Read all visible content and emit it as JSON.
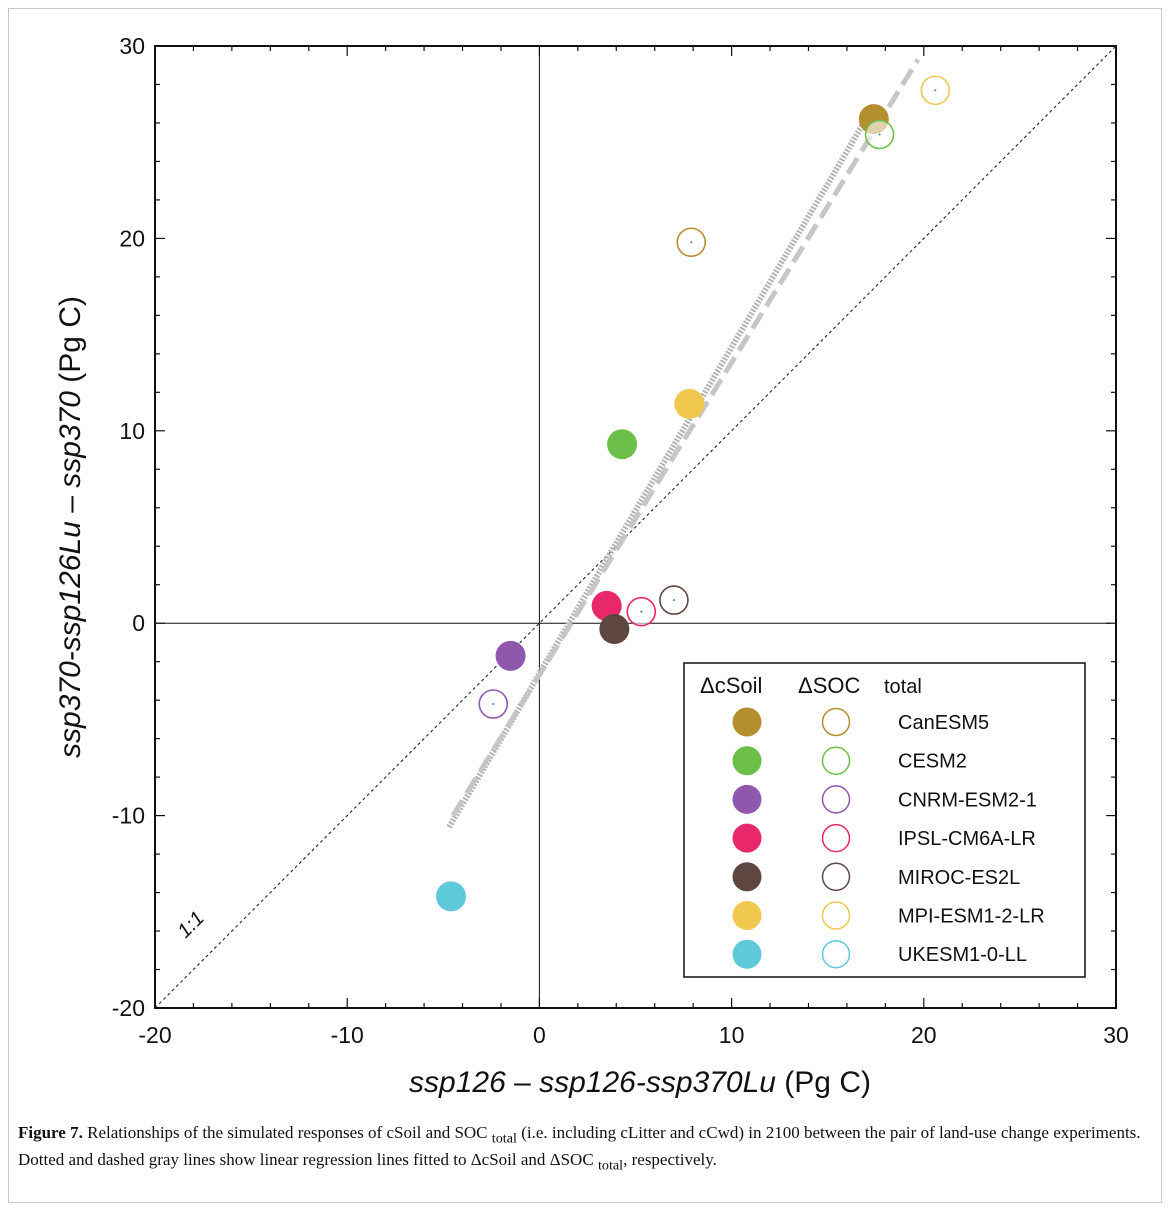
{
  "chart_data": {
    "type": "scatter",
    "xlabel": {
      "ssp_a": "ssp126",
      "dash": " – ",
      "ssp_b": "ssp126-ssp370Lu",
      "unit": " (Pg C)"
    },
    "ylabel": {
      "ssp_a": "ssp370-ssp126Lu",
      "dash": " – ",
      "ssp_b": "ssp370",
      "unit": " (Pg C)"
    },
    "xlim": [
      -20,
      30
    ],
    "ylim": [
      -20,
      30
    ],
    "xticks": [
      -20,
      -10,
      0,
      10,
      20,
      30
    ],
    "yticks": [
      -20,
      -10,
      0,
      10,
      20,
      30
    ],
    "xtick_labels": [
      "-20",
      "-10",
      "0",
      "10",
      "20",
      "30"
    ],
    "ytick_labels": [
      "-20",
      "-10",
      "0",
      "10",
      "20",
      "30"
    ],
    "one_to_one_label": "1:1",
    "legend": {
      "placement": "bottom-right",
      "header_filled": "ΔcSoil",
      "header_open": "ΔSOC",
      "header_open_sub": "total"
    },
    "series": [
      {
        "name": "CanESM5",
        "color": "#b58e2f",
        "cSoil": [
          17.4,
          26.2
        ],
        "SOC_total": [
          7.9,
          19.8
        ]
      },
      {
        "name": "CESM2",
        "color": "#6cc04a",
        "cSoil": [
          4.3,
          9.3
        ],
        "SOC_total": [
          17.7,
          25.4
        ]
      },
      {
        "name": "CNRM-ESM2-1",
        "color": "#8f58ac",
        "cSoil": [
          -1.5,
          -1.7
        ],
        "SOC_total": [
          -2.4,
          -4.2
        ]
      },
      {
        "name": "IPSL-CM6A-LR",
        "color": "#e8286a",
        "cSoil": [
          3.5,
          0.9
        ],
        "SOC_total": [
          5.3,
          0.6
        ]
      },
      {
        "name": "MIROC-ES2L",
        "color": "#5e4741",
        "cSoil": [
          3.9,
          -0.3
        ],
        "SOC_total": [
          7.0,
          1.2
        ]
      },
      {
        "name": "MPI-ESM1-2-LR",
        "color": "#f0c850",
        "cSoil": [
          7.8,
          11.4
        ],
        "SOC_total": [
          20.6,
          27.7
        ]
      },
      {
        "name": "UKESM1-0-LL",
        "color": "#5fc8d9",
        "cSoil": [
          -4.6,
          -14.2
        ],
        "SOC_total": null
      }
    ],
    "regression_lines": [
      {
        "name": "ΔcSoil",
        "style": "dotted",
        "color": "#b4b4b8",
        "x": [
          -4.7,
          17.4
        ],
        "y": [
          -10.6,
          26.9
        ]
      },
      {
        "name": "ΔSOC total",
        "style": "dashed",
        "color": "#c6c6c8",
        "x": [
          -4.5,
          19.7
        ],
        "y": [
          -10.0,
          29.3
        ]
      }
    ]
  },
  "caption": {
    "figure_label": "Figure 7.",
    "text_1": " Relationships of the simulated responses of cSoil and SOC ",
    "sub_1": "total",
    "text_2": " (i.e. including cLitter and cCwd) in 2100 between the pair of land-use change experiments. Dotted and dashed gray lines show linear regression lines fitted to ΔcSoil and ΔSOC ",
    "sub_2": "total",
    "text_3": ", respectively."
  }
}
